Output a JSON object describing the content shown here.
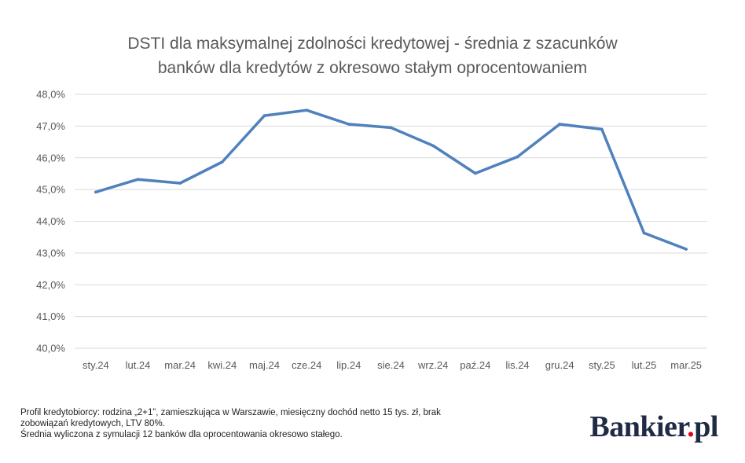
{
  "title_lines": [
    "DSTI dla maksymalnej zdolności kredytowej - średnia z szacunków",
    "banków dla kredytów z okresowo stałym oprocentowaniem"
  ],
  "footnote_lines": [
    "Profil kredytobiorcy: rodzina „2+1”, zamieszkująca w Warszawie, miesięczny dochód netto 15 tys. zł, brak",
    "zobowiązań kredytowych, LTV 80%.",
    "Średnia wyliczona z symulacji 12 banków dla oprocentowania okresowo stałego."
  ],
  "logo": {
    "name": "Bankier",
    "dot": ".",
    "tld": "pl"
  },
  "chart_data": {
    "type": "line",
    "title": "DSTI dla maksymalnej zdolności kredytowej - średnia z szacunków banków dla kredytów z okresowo stałym oprocentowaniem",
    "categories": [
      "sty.24",
      "lut.24",
      "mar.24",
      "kwi.24",
      "maj.24",
      "cze.24",
      "lip.24",
      "sie.24",
      "wrz.24",
      "paź.24",
      "lis.24",
      "gru.24",
      "sty.25",
      "lut.25",
      "mar.25"
    ],
    "series": [
      {
        "values": [
          44.92,
          45.32,
          45.2,
          45.87,
          47.33,
          47.5,
          47.06,
          46.95,
          46.38,
          45.51,
          46.03,
          47.06,
          46.9,
          43.63,
          43.12
        ]
      }
    ],
    "ylim": [
      40,
      48
    ],
    "y_ticks": [
      "40,0%",
      "41,0%",
      "42,0%",
      "43,0%",
      "44,0%",
      "45,0%",
      "46,0%",
      "47,0%",
      "48,0%"
    ],
    "grid": true,
    "legend": "none",
    "line_color": "#4f81bd",
    "grid_color": "#d9d9d9"
  }
}
